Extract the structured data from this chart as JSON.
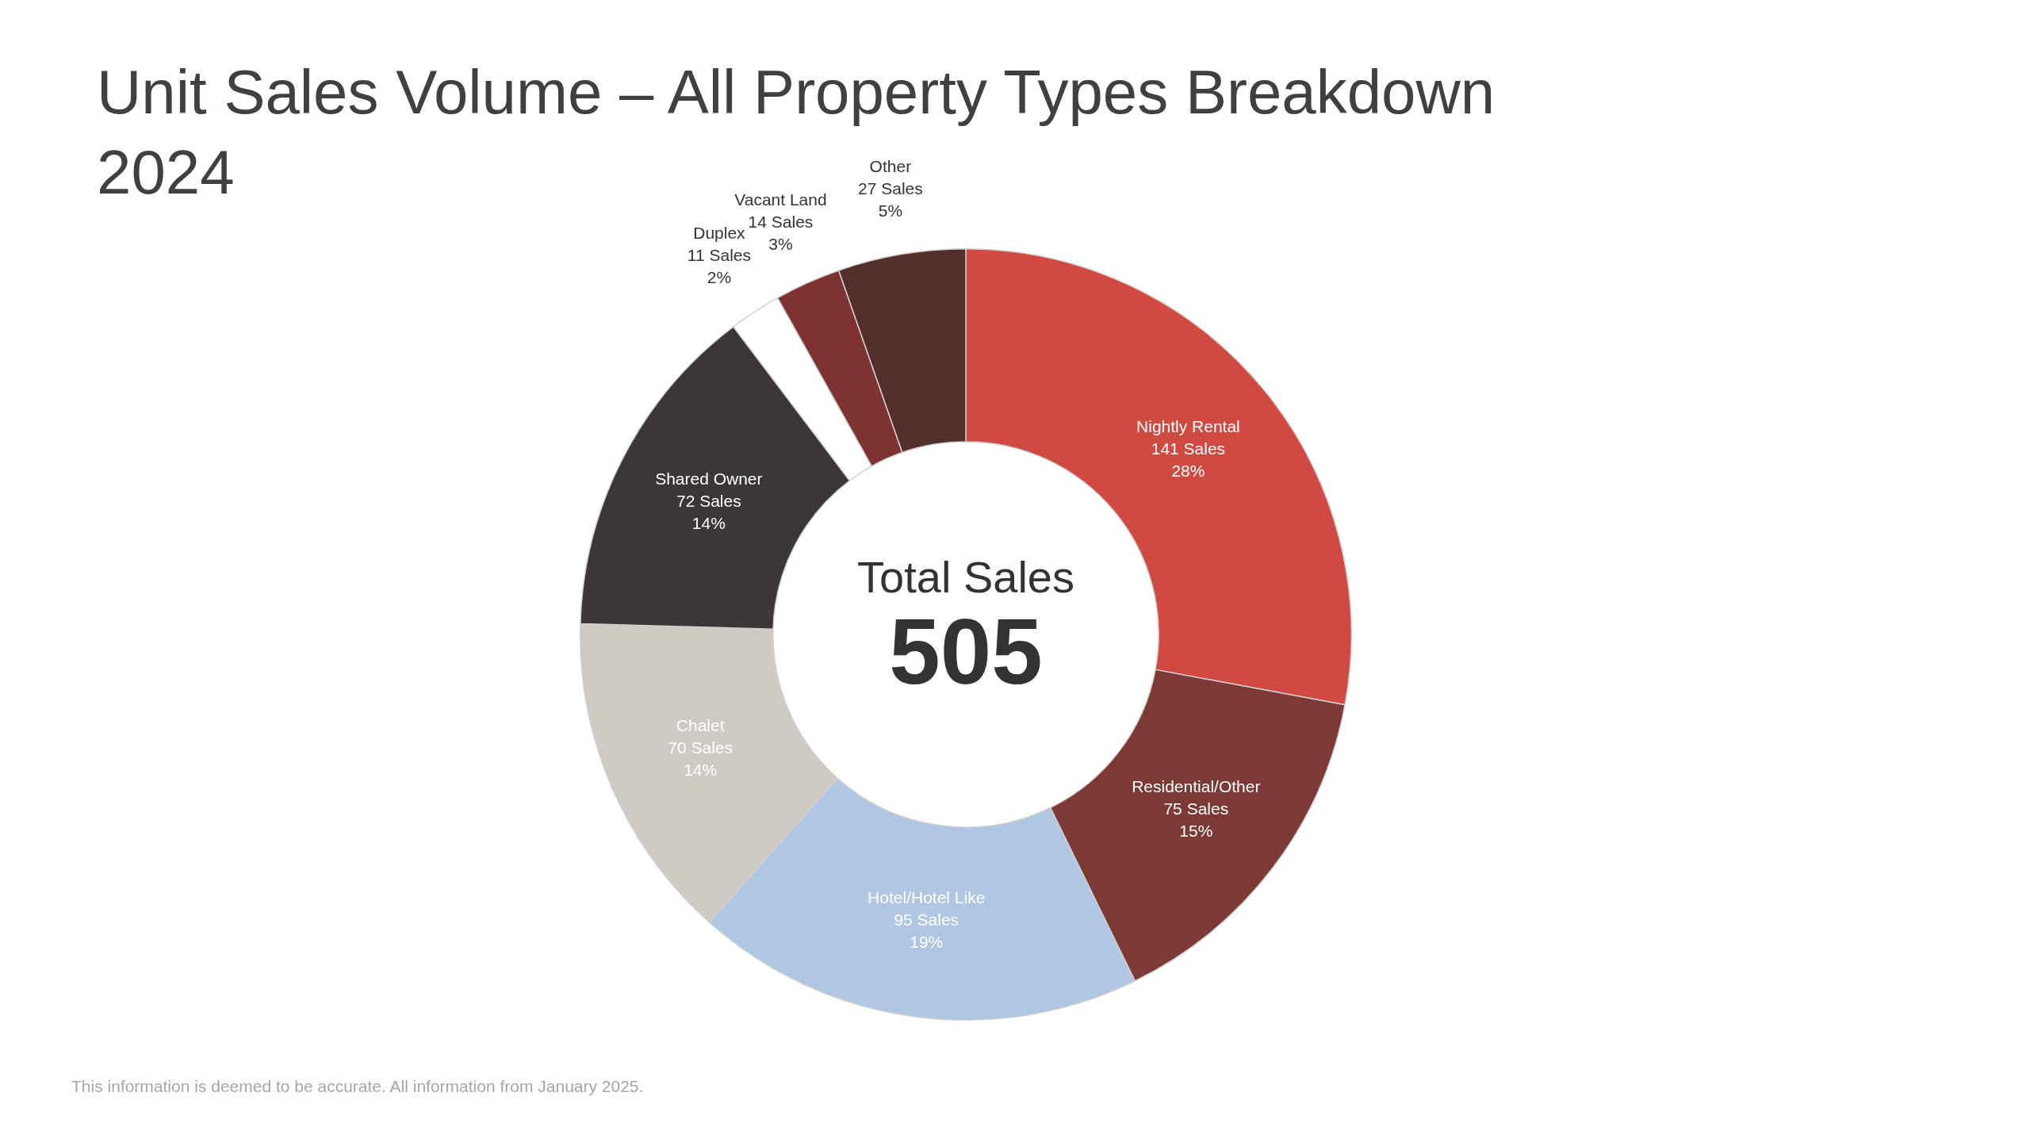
{
  "chart_data": {
    "type": "donut",
    "title": "Unit Sales Volume – All Property Types Breakdown 2024",
    "categories": [
      "Nightly Rental",
      "Residential/Other",
      "Hotel/Hotel Like",
      "Chalet",
      "Shared Owner",
      "Duplex",
      "Vacant Land",
      "Other"
    ],
    "values": [
      141,
      75,
      95,
      70,
      72,
      11,
      14,
      27
    ],
    "colors": [
      "#d04a42",
      "#7c3935",
      "#b0c7e3",
      "#cfcac3",
      "#3b3736",
      "#ffffff",
      "#7e3332",
      "#522e2d"
    ],
    "value_labels": [
      "141 Sales\n28%",
      "75 Sales\n15%",
      "95 Sales\n19%",
      "70 Sales\n14%",
      "72 Sales\n14%",
      "11 Sales\n2%",
      "14 Sales\n3%",
      "27 Sales\n5%"
    ],
    "annotations": [
      "Total Sales",
      "505",
      "This information is deemed to be accurate. All information from January 2025."
    ]
  }
}
